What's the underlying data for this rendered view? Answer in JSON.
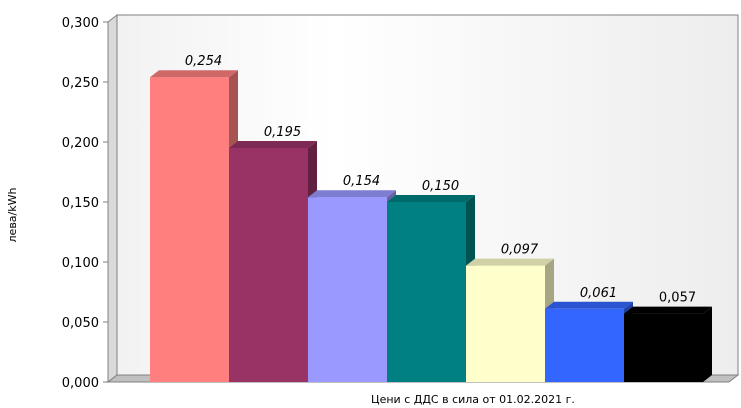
{
  "chart_data": {
    "type": "bar",
    "categories": [
      "",
      "",
      "",
      "",
      "",
      "",
      ""
    ],
    "values": [
      0.254,
      0.195,
      0.154,
      0.15,
      0.097,
      0.061,
      0.057
    ],
    "value_labels": [
      "0,254",
      "0,195",
      "0,154",
      "0,150",
      "0,097",
      "0,061",
      "0,057"
    ],
    "label_italic": [
      true,
      true,
      true,
      true,
      true,
      true,
      false
    ],
    "colors": [
      "#FF7F7F",
      "#993366",
      "#9999FF",
      "#008080",
      "#FFFFCC",
      "#3366FF",
      "#000000"
    ],
    "xlabel": "Цени с ДДС в сила от 01.02.2021 г.",
    "ylabel": "лева/kWh",
    "ylim": [
      0,
      0.3
    ],
    "yticks": [
      0,
      0.05,
      0.1,
      0.15,
      0.2,
      0.25,
      0.3
    ],
    "ytick_labels": [
      "0,000",
      "0,050",
      "0,100",
      "0,150",
      "0,200",
      "0,250",
      "0,300"
    ],
    "grid": false,
    "legend": "none",
    "style": "3d-column",
    "wall_color": "#FFFFFF",
    "floor_color": "#C0C0C0"
  }
}
